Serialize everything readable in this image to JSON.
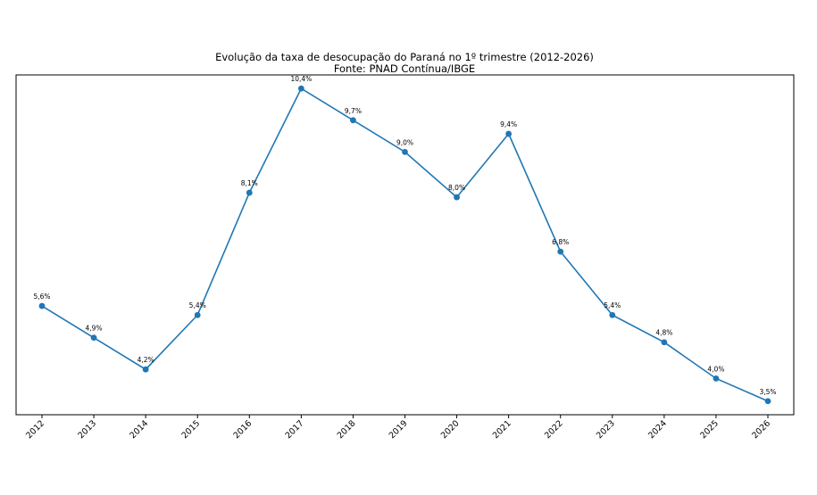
{
  "chart_data": {
    "type": "line",
    "title": "Evolução da taxa de desocupação do Paraná no 1º trimestre (2012-2026)",
    "subtitle": "Fonte: PNAD Contínua/IBGE",
    "xlabel": "",
    "ylabel": "",
    "x": [
      "2012",
      "2013",
      "2014",
      "2015",
      "2016",
      "2017",
      "2018",
      "2019",
      "2020",
      "2021",
      "2022",
      "2023",
      "2024",
      "2025",
      "2026"
    ],
    "series": [
      {
        "values": [
          5.6,
          4.9,
          4.2,
          5.4,
          8.1,
          10.4,
          9.7,
          9.0,
          8.0,
          9.4,
          6.8,
          5.4,
          4.8,
          4.0,
          3.5
        ],
        "labels": [
          "5,6%",
          "4,9%",
          "4,2%",
          "5,4%",
          "8,1%",
          "10,4%",
          "9,7%",
          "9,0%",
          "8,0%",
          "9,4%",
          "6,8%",
          "5,4%",
          "4,8%",
          "4,0%",
          "3,5%"
        ],
        "color": "#1f77b4"
      }
    ],
    "ylim": [
      3.2,
      10.7
    ],
    "grid": false,
    "y_ticks_visible": false
  }
}
